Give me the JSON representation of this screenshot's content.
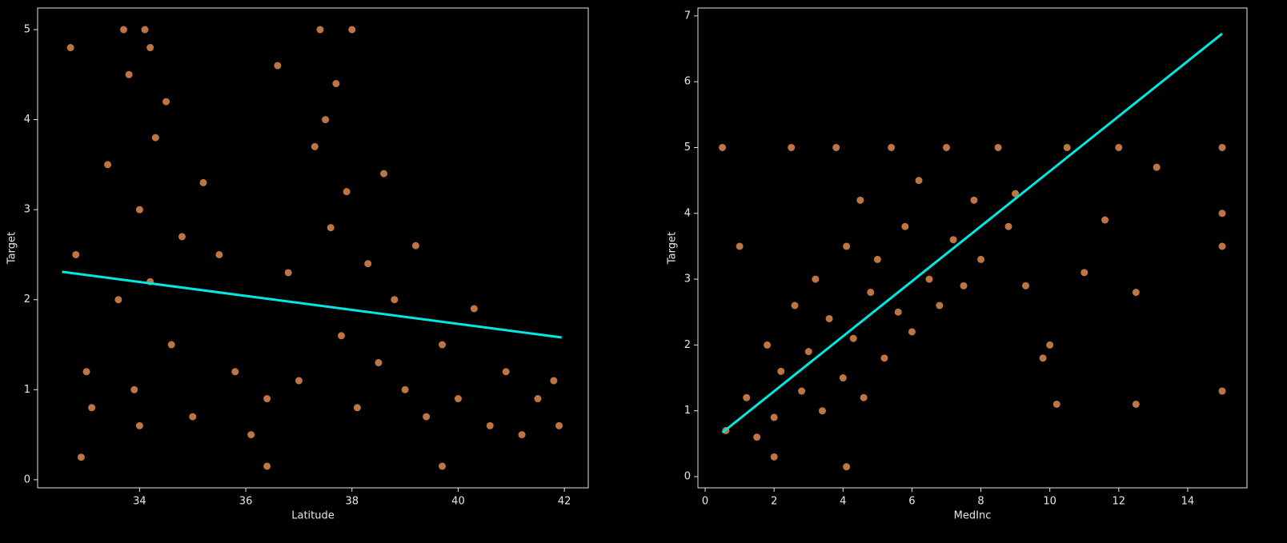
{
  "chart_data": [
    {
      "type": "scatter",
      "xlabel": "Latitude",
      "ylabel": "Target",
      "xlim": [
        32.08,
        42.45
      ],
      "ylim": [
        -0.09,
        5.24
      ],
      "xticks": [
        34,
        36,
        38,
        40,
        42
      ],
      "yticks": [
        0,
        1,
        2,
        3,
        4,
        5
      ],
      "points": {
        "color": "#e0894f",
        "x": [
          33.0,
          32.8,
          33.1,
          32.7,
          33.4,
          33.6,
          33.8,
          33.9,
          34.0,
          34.1,
          34.2,
          34.0,
          33.7,
          34.3,
          34.5,
          34.6,
          34.8,
          35.0,
          35.2,
          35.5,
          35.8,
          36.1,
          36.4,
          36.6,
          36.8,
          37.0,
          37.3,
          37.4,
          37.6,
          37.7,
          37.8,
          37.9,
          38.0,
          38.1,
          38.3,
          38.5,
          38.6,
          38.8,
          39.0,
          39.2,
          39.4,
          39.7,
          40.0,
          40.3,
          40.6,
          40.9,
          41.2,
          41.5,
          41.8,
          41.9,
          34.2,
          37.5,
          32.9,
          36.4,
          39.7
        ],
        "values": [
          1.2,
          2.5,
          0.8,
          4.8,
          3.5,
          2.0,
          4.5,
          1.0,
          3.0,
          5.0,
          2.2,
          0.6,
          5.0,
          3.8,
          4.2,
          1.5,
          2.7,
          0.7,
          3.3,
          2.5,
          1.2,
          0.5,
          0.9,
          4.6,
          2.3,
          1.1,
          3.7,
          5.0,
          2.8,
          4.4,
          1.6,
          3.2,
          5.0,
          0.8,
          2.4,
          1.3,
          3.4,
          2.0,
          1.0,
          2.6,
          0.7,
          1.5,
          0.9,
          1.9,
          0.6,
          1.2,
          0.5,
          0.9,
          1.1,
          0.6,
          4.8,
          4.0,
          0.25,
          0.15,
          0.15
        ]
      },
      "fit": {
        "color": "#00e8e0",
        "x": [
          32.54,
          41.95
        ],
        "values": [
          2.31,
          1.58
        ]
      }
    },
    {
      "type": "scatter",
      "xlabel": "MedInc",
      "ylabel": "Target",
      "xlim": [
        -0.21,
        15.72
      ],
      "ylim": [
        -0.17,
        7.12
      ],
      "xticks": [
        0,
        2,
        4,
        6,
        8,
        10,
        12,
        14
      ],
      "yticks": [
        0,
        1,
        2,
        3,
        4,
        5,
        6,
        7
      ],
      "points": {
        "color": "#e0894f",
        "x": [
          0.5,
          1.0,
          0.6,
          1.2,
          1.5,
          1.8,
          2.0,
          2.2,
          2.5,
          2.6,
          2.8,
          3.0,
          3.2,
          3.4,
          3.6,
          3.8,
          4.0,
          4.1,
          4.3,
          4.5,
          4.6,
          4.8,
          5.0,
          5.2,
          5.4,
          5.6,
          5.8,
          6.0,
          6.2,
          6.5,
          6.8,
          7.0,
          7.2,
          7.5,
          7.8,
          8.0,
          8.5,
          8.8,
          9.0,
          9.3,
          9.8,
          10.0,
          10.2,
          10.5,
          11.0,
          11.6,
          12.0,
          12.5,
          12.5,
          13.1,
          15.0,
          15.0,
          15.0,
          15.0,
          2.0,
          4.1
        ],
        "values": [
          5.0,
          3.5,
          0.7,
          1.2,
          0.6,
          2.0,
          0.9,
          1.6,
          5.0,
          2.6,
          1.3,
          1.9,
          3.0,
          1.0,
          2.4,
          5.0,
          1.5,
          3.5,
          2.1,
          4.2,
          1.2,
          2.8,
          3.3,
          1.8,
          5.0,
          2.5,
          3.8,
          2.2,
          4.5,
          3.0,
          2.6,
          5.0,
          3.6,
          2.9,
          4.2,
          3.3,
          5.0,
          3.8,
          4.3,
          2.9,
          1.8,
          2.0,
          1.1,
          5.0,
          3.1,
          3.9,
          5.0,
          2.8,
          1.1,
          4.7,
          5.0,
          4.0,
          3.5,
          1.3,
          0.3,
          0.15
        ]
      },
      "fit": {
        "color": "#00e8e0",
        "x": [
          0.5,
          15.0
        ],
        "values": [
          0.67,
          6.73
        ]
      }
    }
  ]
}
